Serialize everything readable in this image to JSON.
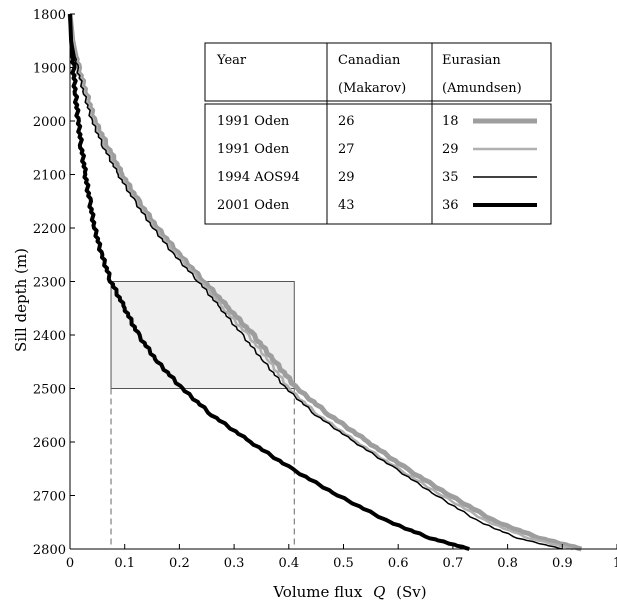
{
  "chart_data": {
    "type": "line",
    "xlabel": "Volume flux",
    "xlabel_var": "Q",
    "xlabel_unit": "(Sv)",
    "ylabel": "Sill depth  (m)",
    "xlim": [
      0,
      1.0
    ],
    "ylim": [
      1800,
      2800
    ],
    "y_inverted": true,
    "x_ticks": [
      "0",
      "0.1",
      "0.2",
      "0.3",
      "0.4",
      "0.5",
      "0.6",
      "0.7",
      "0.8",
      "0.9",
      "1"
    ],
    "y_ticks": [
      "1800",
      "1900",
      "2000",
      "2100",
      "2200",
      "2300",
      "2400",
      "2500",
      "2600",
      "2700",
      "2800"
    ],
    "grid": false,
    "highlight_box": {
      "x": [
        0.075,
        0.41
      ],
      "y": [
        2300,
        2500
      ],
      "fill": "#efefef",
      "stroke": "#555555"
    },
    "dashed_guides": [
      0.075,
      0.41
    ],
    "legend": {
      "headers": [
        "Year",
        "Canadian",
        "Eurasian"
      ],
      "subheaders": [
        "",
        "(Makarov)",
        "(Amundsen)"
      ],
      "rows": [
        {
          "year": "1991 Oden",
          "canadian": "26",
          "eurasian": "18"
        },
        {
          "year": "1991 Oden",
          "canadian": "27",
          "eurasian": "29"
        },
        {
          "year": "1994 AOS94",
          "canadian": "29",
          "eurasian": "35"
        },
        {
          "year": "2001 Oden",
          "canadian": "43",
          "eurasian": "36"
        }
      ]
    },
    "series": [
      {
        "color": "#9e9e9e",
        "width": 5,
        "points": [
          [
            0.0,
            1800
          ],
          [
            0.005,
            1850
          ],
          [
            0.015,
            1900
          ],
          [
            0.03,
            1950
          ],
          [
            0.045,
            2000
          ],
          [
            0.07,
            2050
          ],
          [
            0.095,
            2100
          ],
          [
            0.125,
            2150
          ],
          [
            0.16,
            2200
          ],
          [
            0.2,
            2250
          ],
          [
            0.245,
            2300
          ],
          [
            0.29,
            2350
          ],
          [
            0.335,
            2400
          ],
          [
            0.375,
            2450
          ],
          [
            0.415,
            2500
          ],
          [
            0.475,
            2550
          ],
          [
            0.545,
            2600
          ],
          [
            0.615,
            2650
          ],
          [
            0.695,
            2700
          ],
          [
            0.78,
            2750
          ],
          [
            0.86,
            2780
          ],
          [
            0.935,
            2800
          ]
        ]
      },
      {
        "color": "#b0b0b0",
        "width": 2.5,
        "points": [
          [
            0.0,
            1800
          ],
          [
            0.005,
            1850
          ],
          [
            0.014,
            1900
          ],
          [
            0.028,
            1950
          ],
          [
            0.042,
            2000
          ],
          [
            0.065,
            2050
          ],
          [
            0.09,
            2100
          ],
          [
            0.12,
            2150
          ],
          [
            0.155,
            2200
          ],
          [
            0.195,
            2250
          ],
          [
            0.24,
            2300
          ],
          [
            0.28,
            2350
          ],
          [
            0.325,
            2400
          ],
          [
            0.365,
            2450
          ],
          [
            0.4,
            2500
          ],
          [
            0.455,
            2550
          ],
          [
            0.525,
            2600
          ],
          [
            0.6,
            2650
          ],
          [
            0.68,
            2700
          ],
          [
            0.765,
            2750
          ],
          [
            0.84,
            2780
          ],
          [
            0.92,
            2800
          ]
        ]
      },
      {
        "color": "#000000",
        "width": 1.5,
        "points": [
          [
            0.0,
            1800
          ],
          [
            0.004,
            1850
          ],
          [
            0.013,
            1900
          ],
          [
            0.026,
            1950
          ],
          [
            0.04,
            2000
          ],
          [
            0.062,
            2050
          ],
          [
            0.088,
            2100
          ],
          [
            0.118,
            2150
          ],
          [
            0.152,
            2200
          ],
          [
            0.19,
            2250
          ],
          [
            0.235,
            2300
          ],
          [
            0.275,
            2350
          ],
          [
            0.315,
            2400
          ],
          [
            0.355,
            2450
          ],
          [
            0.395,
            2500
          ],
          [
            0.45,
            2550
          ],
          [
            0.52,
            2600
          ],
          [
            0.595,
            2650
          ],
          [
            0.67,
            2700
          ],
          [
            0.75,
            2750
          ],
          [
            0.82,
            2780
          ],
          [
            0.9,
            2800
          ]
        ]
      },
      {
        "color": "#000000",
        "width": 4,
        "points": [
          [
            0.0,
            1800
          ],
          [
            0.002,
            1850
          ],
          [
            0.006,
            1900
          ],
          [
            0.01,
            1950
          ],
          [
            0.015,
            2000
          ],
          [
            0.021,
            2050
          ],
          [
            0.028,
            2100
          ],
          [
            0.036,
            2150
          ],
          [
            0.045,
            2200
          ],
          [
            0.058,
            2250
          ],
          [
            0.075,
            2300
          ],
          [
            0.1,
            2350
          ],
          [
            0.125,
            2400
          ],
          [
            0.16,
            2450
          ],
          [
            0.205,
            2500
          ],
          [
            0.26,
            2550
          ],
          [
            0.33,
            2600
          ],
          [
            0.405,
            2650
          ],
          [
            0.49,
            2700
          ],
          [
            0.585,
            2750
          ],
          [
            0.66,
            2780
          ],
          [
            0.73,
            2800
          ]
        ]
      }
    ]
  }
}
